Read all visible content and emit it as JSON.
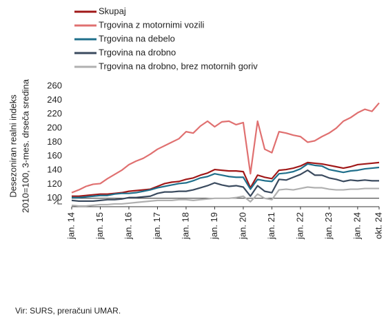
{
  "chart_data": {
    "type": "line",
    "ylabel": [
      "Desezoniran realni indeks",
      "2010=100, 3-mes. drseča sredina"
    ],
    "source": "Vir: SURS, preračuni UMAR.",
    "categories": [
      "jan. 14",
      null,
      null,
      null,
      "jan. 15",
      null,
      null,
      null,
      "jan. 16",
      null,
      null,
      null,
      "jan. 17",
      null,
      null,
      null,
      "jan. 18",
      null,
      null,
      null,
      "jan. 19",
      null,
      null,
      null,
      "jan. 20",
      null,
      null,
      null,
      "jan. 21",
      null,
      null,
      null,
      "jan. 22",
      null,
      null,
      null,
      "jan. 23",
      null,
      null,
      null,
      "jan. 24",
      null,
      null,
      "okt. 24"
    ],
    "ylim": [
      88,
      260
    ],
    "yticks": [
      100,
      120,
      140,
      160,
      180,
      200,
      220,
      240,
      260
    ],
    "reference_line": 100,
    "grid": false,
    "legend": "top-left",
    "series": [
      {
        "name": "Skupaj",
        "color": "#a01818",
        "values": [
          103,
          103,
          104,
          105,
          106,
          106,
          107,
          108,
          110,
          111,
          112,
          113,
          117,
          121,
          123,
          124,
          127,
          129,
          133,
          136,
          141,
          140,
          139,
          139,
          138,
          115,
          133,
          130,
          128,
          140,
          141,
          143,
          146,
          151,
          150,
          149,
          147,
          145,
          143,
          145,
          148,
          149,
          150,
          151
        ]
      },
      {
        "name": "Trgovina z motornimi vozili",
        "color": "#e07070",
        "values": [
          108,
          112,
          117,
          120,
          121,
          128,
          134,
          140,
          148,
          153,
          157,
          163,
          170,
          175,
          180,
          185,
          195,
          193,
          203,
          210,
          202,
          209,
          210,
          205,
          208,
          135,
          210,
          170,
          165,
          195,
          193,
          190,
          188,
          180,
          182,
          188,
          193,
          200,
          210,
          215,
          222,
          227,
          224,
          236
        ]
      },
      {
        "name": "Trgovina na debelo",
        "color": "#1f6f8b",
        "values": [
          101,
          101,
          102,
          103,
          104,
          104,
          106,
          107,
          107,
          108,
          110,
          112,
          115,
          117,
          119,
          121,
          122,
          125,
          129,
          131,
          135,
          133,
          131,
          130,
          130,
          113,
          127,
          125,
          124,
          135,
          136,
          138,
          142,
          149,
          147,
          146,
          141,
          139,
          137,
          139,
          140,
          142,
          143,
          144
        ]
      },
      {
        "name": "Trgovina na drobno",
        "color": "#3a4a5e",
        "values": [
          97,
          96,
          96,
          96,
          97,
          98,
          98,
          99,
          101,
          101,
          102,
          103,
          107,
          109,
          109,
          110,
          110,
          112,
          115,
          118,
          122,
          119,
          117,
          118,
          116,
          103,
          118,
          110,
          108,
          127,
          126,
          130,
          134,
          140,
          133,
          133,
          129,
          127,
          124,
          126,
          125,
          126,
          125,
          125
        ]
      },
      {
        "name": "Trgovina na drobno, brez motornih goriv",
        "color": "#b0b0b0",
        "values": [
          90,
          89,
          89,
          90,
          91,
          91,
          92,
          92,
          93,
          94,
          95,
          96,
          97,
          97,
          97,
          98,
          98,
          97,
          98,
          99,
          100,
          100,
          100,
          101,
          103,
          95,
          106,
          100,
          98,
          112,
          113,
          112,
          114,
          116,
          115,
          115,
          113,
          112,
          112,
          113,
          113,
          114,
          114,
          114
        ]
      }
    ]
  }
}
